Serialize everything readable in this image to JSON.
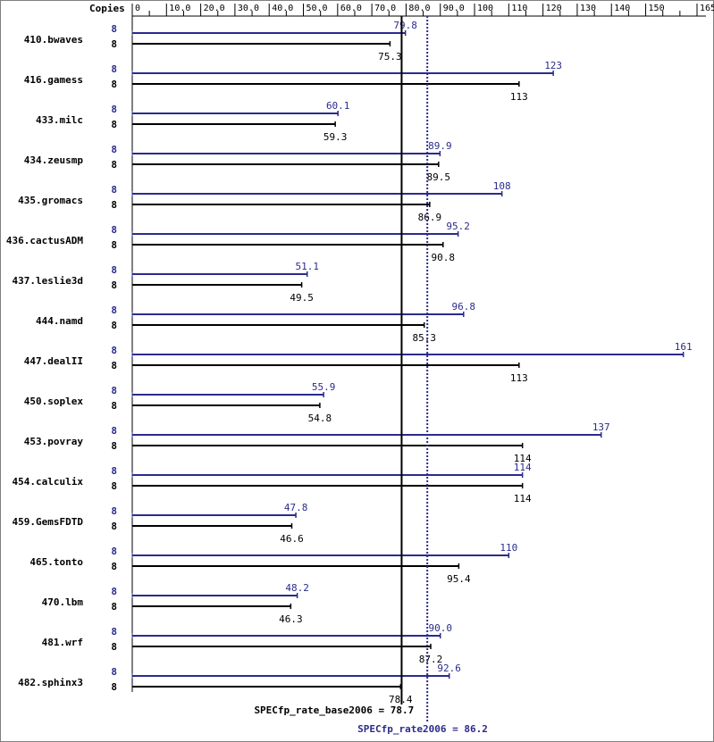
{
  "chart_data": {
    "type": "bar",
    "orientation": "horizontal",
    "header_label": "Copies",
    "xlim": [
      0,
      165
    ],
    "xticks": [
      "0",
      "10.0",
      "20.0",
      "30.0",
      "40.0",
      "50.0",
      "60.0",
      "70.0",
      "80.0",
      "90.0",
      "100",
      "110",
      "120",
      "130",
      "140",
      "150",
      "165"
    ],
    "xtick_values": [
      0,
      10,
      20,
      30,
      40,
      50,
      60,
      70,
      80,
      90,
      100,
      110,
      120,
      130,
      140,
      150,
      165
    ],
    "colors": {
      "peak": "#2b2b8c",
      "base": "#000000"
    },
    "benchmarks": [
      {
        "name": "410.bwaves",
        "peak_copies": "8",
        "peak": 79.8,
        "peak_label": "79.8",
        "base_copies": "8",
        "base": 75.3,
        "base_label": "75.3"
      },
      {
        "name": "416.gamess",
        "peak_copies": "8",
        "peak": 123,
        "peak_label": "123",
        "base_copies": "8",
        "base": 113,
        "base_label": "113"
      },
      {
        "name": "433.milc",
        "peak_copies": "8",
        "peak": 60.1,
        "peak_label": "60.1",
        "base_copies": "8",
        "base": 59.3,
        "base_label": "59.3"
      },
      {
        "name": "434.zeusmp",
        "peak_copies": "8",
        "peak": 89.9,
        "peak_label": "89.9",
        "base_copies": "8",
        "base": 89.5,
        "base_label": "89.5"
      },
      {
        "name": "435.gromacs",
        "peak_copies": "8",
        "peak": 108,
        "peak_label": "108",
        "base_copies": "8",
        "base": 86.9,
        "base_label": "86.9"
      },
      {
        "name": "436.cactusADM",
        "peak_copies": "8",
        "peak": 95.2,
        "peak_label": "95.2",
        "base_copies": "8",
        "base": 90.8,
        "base_label": "90.8"
      },
      {
        "name": "437.leslie3d",
        "peak_copies": "8",
        "peak": 51.1,
        "peak_label": "51.1",
        "base_copies": "8",
        "base": 49.5,
        "base_label": "49.5"
      },
      {
        "name": "444.namd",
        "peak_copies": "8",
        "peak": 96.8,
        "peak_label": "96.8",
        "base_copies": "8",
        "base": 85.3,
        "base_label": "85.3"
      },
      {
        "name": "447.dealII",
        "peak_copies": "8",
        "peak": 161,
        "peak_label": "161",
        "base_copies": "8",
        "base": 113,
        "base_label": "113"
      },
      {
        "name": "450.soplex",
        "peak_copies": "8",
        "peak": 55.9,
        "peak_label": "55.9",
        "base_copies": "8",
        "base": 54.8,
        "base_label": "54.8"
      },
      {
        "name": "453.povray",
        "peak_copies": "8",
        "peak": 137,
        "peak_label": "137",
        "base_copies": "8",
        "base": 114,
        "base_label": "114"
      },
      {
        "name": "454.calculix",
        "peak_copies": "8",
        "peak": 114,
        "peak_label": "114",
        "base_copies": "8",
        "base": 114,
        "base_label": "114"
      },
      {
        "name": "459.GemsFDTD",
        "peak_copies": "8",
        "peak": 47.8,
        "peak_label": "47.8",
        "base_copies": "8",
        "base": 46.6,
        "base_label": "46.6"
      },
      {
        "name": "465.tonto",
        "peak_copies": "8",
        "peak": 110,
        "peak_label": "110",
        "base_copies": "8",
        "base": 95.4,
        "base_label": "95.4"
      },
      {
        "name": "470.lbm",
        "peak_copies": "8",
        "peak": 48.2,
        "peak_label": "48.2",
        "base_copies": "8",
        "base": 46.3,
        "base_label": "46.3"
      },
      {
        "name": "481.wrf",
        "peak_copies": "8",
        "peak": 90.0,
        "peak_label": "90.0",
        "base_copies": "8",
        "base": 87.2,
        "base_label": "87.2"
      },
      {
        "name": "482.sphinx3",
        "peak_copies": "8",
        "peak": 92.6,
        "peak_label": "92.6",
        "base_copies": "8",
        "base": 78.4,
        "base_label": "78.4"
      }
    ],
    "reference_lines": [
      {
        "kind": "base",
        "value": 78.7,
        "label": "SPECfp_rate_base2006 = 78.7",
        "style": "solid"
      },
      {
        "kind": "peak",
        "value": 86.2,
        "label": "SPECfp_rate2006 = 86.2",
        "style": "dotted"
      }
    ]
  }
}
